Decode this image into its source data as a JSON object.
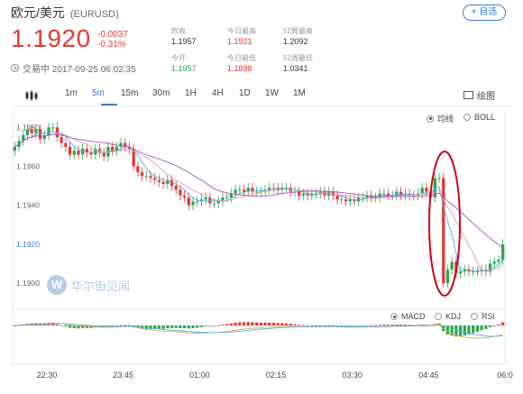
{
  "header": {
    "title": "欧元/美元",
    "symbol": "(EURUSD)",
    "add_label": "+ 自选",
    "price": "1.1920",
    "change": "-0.0037",
    "change_pct": "-0.31%",
    "status": "交易中 2017-09-25 06:02:35",
    "stats": [
      {
        "label": "昨收",
        "value": "1.1957",
        "color": "default"
      },
      {
        "label": "今日最高",
        "value": "1.1921",
        "color": "red"
      },
      {
        "label": "52周最高",
        "value": "1.2092",
        "color": "default"
      },
      {
        "label": "今开",
        "value": "1.1957",
        "color": "green"
      },
      {
        "label": "今日最低",
        "value": "1.1898",
        "color": "red"
      },
      {
        "label": "52周最低",
        "value": "1.0341",
        "color": "default"
      }
    ]
  },
  "tabs": {
    "items": [
      "1m",
      "5m",
      "15m",
      "30m",
      "1H",
      "4H",
      "1D",
      "1W",
      "1M"
    ],
    "active": "5m",
    "draw_label": "绘图"
  },
  "overlays": {
    "ma_label": "均线",
    "boll_label": "BOLL",
    "selected": "均线"
  },
  "indicators": {
    "macd_label": "MACD",
    "kdj_label": "KDJ",
    "rsi_label": "RSI",
    "selected": "MACD"
  },
  "watermark": {
    "logo": "W",
    "text": "华尔街见闻"
  },
  "colors": {
    "up": "#2ea44f",
    "down": "#e53935",
    "accent": "#3a7bd5",
    "ma_fast": "#4ab0e8",
    "ma_mid": "#e89aa8",
    "ma_slow": "#b04fc0",
    "annotation": "#d0021b"
  },
  "chart_data": {
    "type": "candlestick",
    "interval": "5m",
    "ylim": [
      1.1888,
      1.1988
    ],
    "yticks": [
      "1.1980",
      "1.1960",
      "1.1940",
      "1.1920",
      "1.1900"
    ],
    "last_price": "1.1920",
    "xticks": [
      "22:30",
      "23:45",
      "01:00",
      "02:15",
      "03:30",
      "04:45",
      "06:0"
    ],
    "closes": [
      1.197,
      1.1973,
      1.1976,
      1.1979,
      1.1977,
      1.1979,
      1.1974,
      1.1976,
      1.198,
      1.198,
      1.1975,
      1.1972,
      1.197,
      1.1966,
      1.1968,
      1.1966,
      1.1969,
      1.1967,
      1.1966,
      1.1969,
      1.1967,
      1.1965,
      1.197,
      1.1968,
      1.197,
      1.1972,
      1.197,
      1.1969,
      1.196,
      1.1957,
      1.1955,
      1.1955,
      1.1954,
      1.1953,
      1.1952,
      1.1951,
      1.1953,
      1.195,
      1.1948,
      1.1945,
      1.1944,
      1.194,
      1.1942,
      1.1942,
      1.1943,
      1.1944,
      1.1941,
      1.1941,
      1.1942,
      1.1944,
      1.1944,
      1.1946,
      1.1948,
      1.1948,
      1.1947,
      1.1949,
      1.1947,
      1.1947,
      1.1947,
      1.1948,
      1.1949,
      1.1949,
      1.1948,
      1.1949,
      1.1949,
      1.1947,
      1.1947,
      1.1945,
      1.1946,
      1.1945,
      1.1946,
      1.1946,
      1.1947,
      1.1945,
      1.1947,
      1.1945,
      1.1943,
      1.1943,
      1.1942,
      1.1943,
      1.1942,
      1.1944,
      1.1944,
      1.1945,
      1.1944,
      1.1944,
      1.1946,
      1.1946,
      1.1945,
      1.1945,
      1.1947,
      1.1945,
      1.1946,
      1.1945,
      1.1945,
      1.1946,
      1.1949,
      1.1947,
      1.1944,
      1.1954,
      1.1954,
      1.19,
      1.1907,
      1.1911,
      1.1905,
      1.1906,
      1.1907,
      1.1906,
      1.1906,
      1.1906,
      1.1907,
      1.1906,
      1.191,
      1.1911,
      1.1912,
      1.192
    ]
  }
}
